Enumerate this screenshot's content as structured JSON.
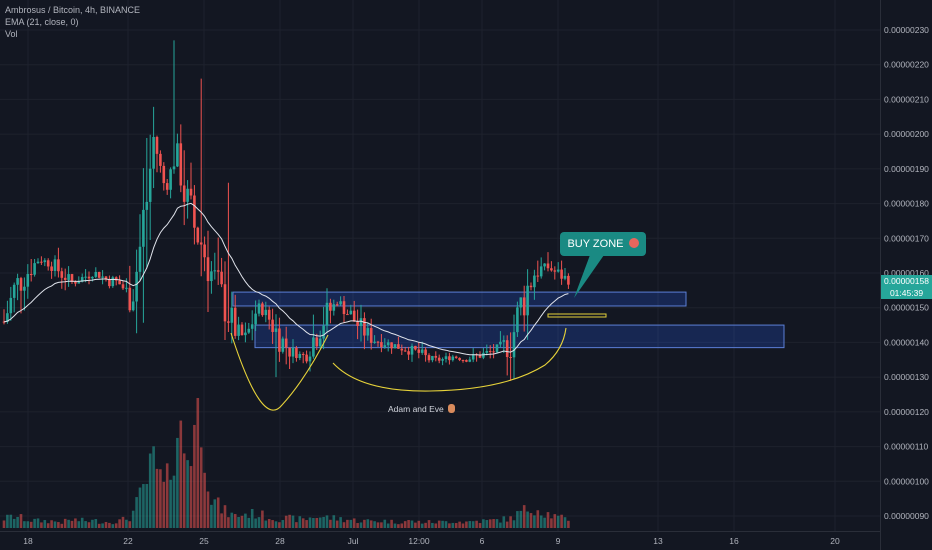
{
  "legend": {
    "symbol": "Ambrosus / Bitcoin, 4h, BINANCE",
    "ema": "EMA (21, close, 0)",
    "vol": "Vol"
  },
  "chart_data": {
    "type": "candlestick",
    "ylim": [
      8.45e-07,
      2.355e-06
    ],
    "y_ticks": [
      "0.00000230",
      "0.00000220",
      "0.00000210",
      "0.00000200",
      "0.00000190",
      "0.00000180",
      "0.00000170",
      "0.00000160",
      "0.00000150",
      "0.00000140",
      "0.00000130",
      "0.00000120",
      "0.00000110",
      "0.00000100",
      "0.00000090"
    ],
    "x_ticks": [
      "18",
      "22",
      "25",
      "28",
      "Jul",
      "12:00",
      "6",
      "9",
      "13",
      "16",
      "20"
    ],
    "last_price": "0.00000158",
    "countdown": "01:45:39",
    "close_path": [
      1.46,
      1.56,
      1.6,
      1.64,
      1.63,
      1.6,
      1.57,
      1.59,
      1.6,
      1.58,
      1.57,
      1.53,
      1.7,
      1.99,
      1.84,
      1.95,
      1.77,
      1.7,
      1.6,
      1.52,
      1.44,
      1.41,
      1.5,
      1.47,
      1.41,
      1.37,
      1.36,
      1.42,
      1.48,
      1.52,
      1.48,
      1.44,
      1.41,
      1.4,
      1.39,
      1.38,
      1.37,
      1.35,
      1.35,
      1.36,
      1.35,
      1.36,
      1.37,
      1.38,
      1.4,
      1.52,
      1.6,
      1.62,
      1.6,
      1.58
    ],
    "volume_path": [
      8,
      10,
      7,
      6,
      6,
      5,
      7,
      6,
      6,
      5,
      6,
      9,
      30,
      55,
      30,
      85,
      60,
      110,
      25,
      15,
      10,
      12,
      12,
      9,
      8,
      8,
      7,
      10,
      9,
      8,
      7,
      6,
      6,
      6,
      5,
      6,
      5,
      5,
      5,
      6,
      5,
      6,
      6,
      7,
      8,
      14,
      18,
      13,
      9,
      7
    ],
    "zones": [
      {
        "price_low": 1.505e-06,
        "price_high": 1.545e-06
      },
      {
        "price_low": 1.385e-06,
        "price_high": 1.45e-06
      }
    ],
    "annotations": {
      "buy_zone": "BUY ZONE",
      "pattern": "Adam and Eve"
    }
  }
}
